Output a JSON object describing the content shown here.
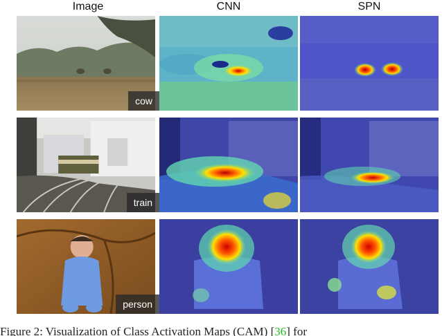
{
  "figure": {
    "column_headers": [
      "Image",
      "CNN",
      "SPN"
    ],
    "rows": [
      {
        "label": "cow"
      },
      {
        "label": "train"
      },
      {
        "label": "person"
      }
    ],
    "caption": {
      "before": "Figure 2: Visualization of Class Activation Maps (CAM) [",
      "ref": "36",
      "after": "] for"
    }
  }
}
